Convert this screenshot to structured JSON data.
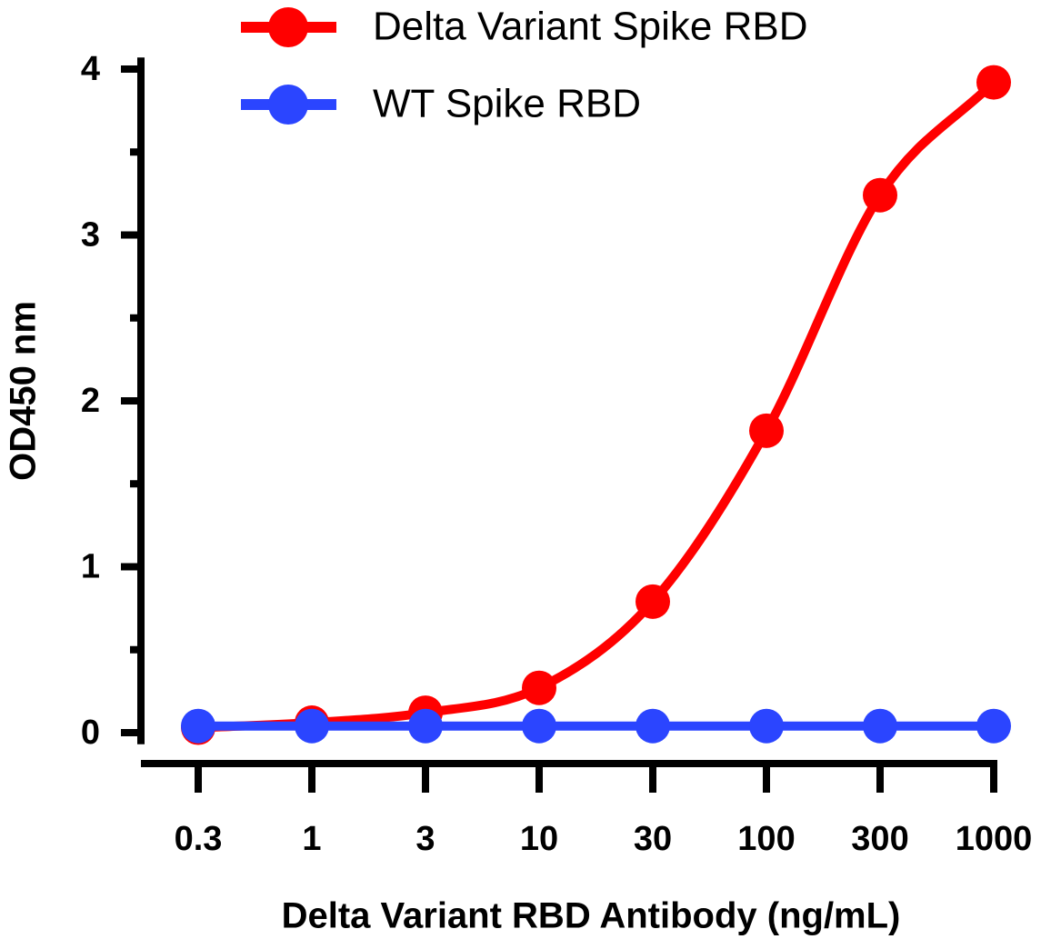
{
  "chart_data": {
    "type": "line",
    "x_label": "Delta Variant RBD Antibody (ng/mL)",
    "y_label": "OD450 nm",
    "categories": [
      "0.3",
      "1",
      "3",
      "10",
      "30",
      "100",
      "300",
      "1000"
    ],
    "ylim": [
      -0.07,
      4.07
    ],
    "yticks": [
      0,
      1,
      2,
      3,
      4
    ],
    "y_minor_ticks": [
      0.5,
      1.5,
      2.5,
      3.5
    ],
    "legend": "top",
    "series": [
      {
        "name": "Delta Variant Spike RBD",
        "color": "#ff0000",
        "values": [
          0.03,
          0.06,
          0.12,
          0.27,
          0.79,
          1.82,
          3.24,
          3.92
        ],
        "smooth": true
      },
      {
        "name": "WT Spike RBD",
        "color": "#2b45ff",
        "values": [
          0.04,
          0.04,
          0.04,
          0.04,
          0.04,
          0.04,
          0.04,
          0.04
        ],
        "smooth": false
      }
    ]
  }
}
